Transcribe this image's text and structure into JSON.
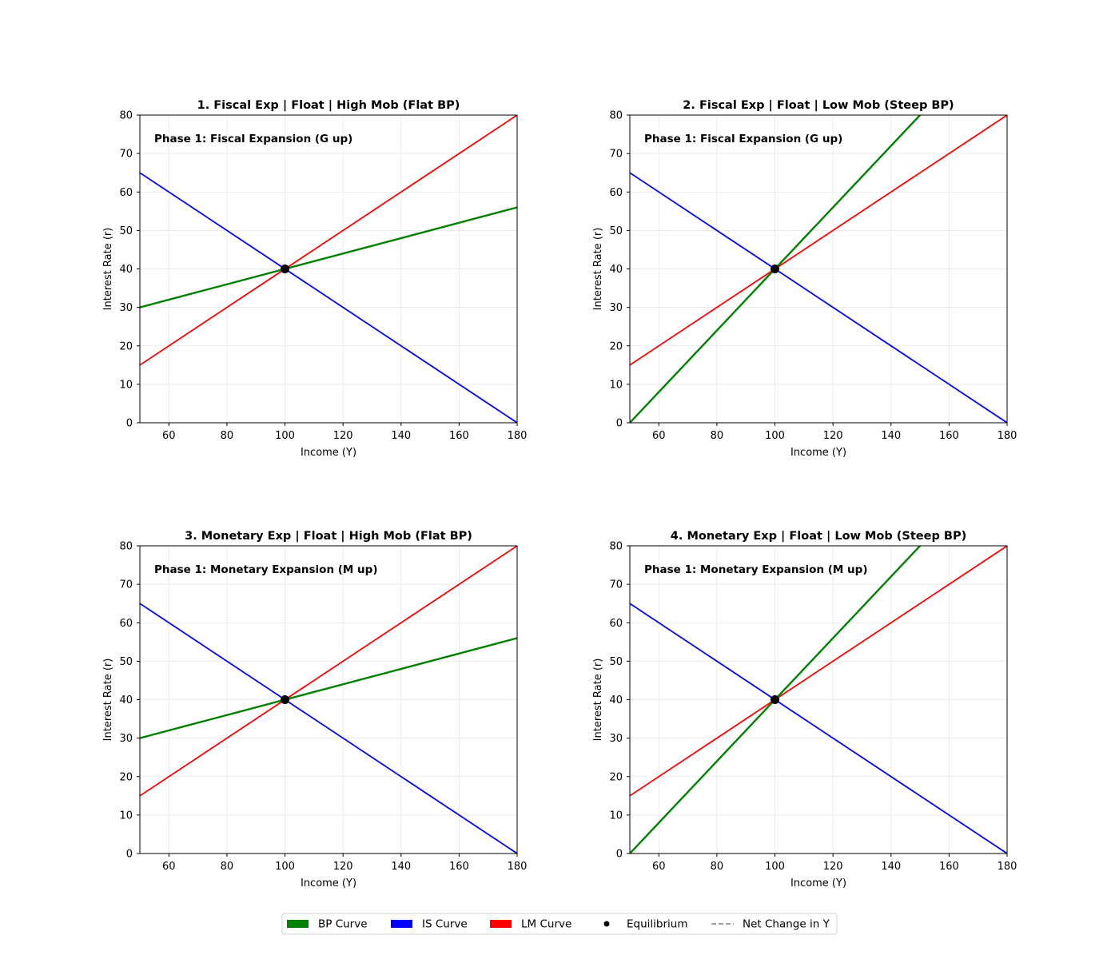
{
  "legend": {
    "items": [
      {
        "label": "BP Curve",
        "kind": "patch",
        "color": "#008000"
      },
      {
        "label": "IS Curve",
        "kind": "patch",
        "color": "#0000ff"
      },
      {
        "label": "LM Curve",
        "kind": "patch",
        "color": "#ff0000"
      },
      {
        "label": "Equilibrium",
        "kind": "dot",
        "color": "#000000"
      },
      {
        "label": "Net Change in Y",
        "kind": "dash",
        "color": "#808080"
      }
    ]
  },
  "chart_data": [
    {
      "type": "line",
      "title": "1. Fiscal Exp | Float | High Mob (Flat BP)",
      "annotation": "Phase 1: Fiscal Expansion (G up)",
      "xlabel": "Income (Y)",
      "ylabel": "Interest Rate (r)",
      "xlim": [
        50,
        180
      ],
      "ylim": [
        0,
        80
      ],
      "xticks": [
        60,
        80,
        100,
        120,
        140,
        160,
        180
      ],
      "yticks": [
        0,
        10,
        20,
        30,
        40,
        50,
        60,
        70,
        80
      ],
      "grid": true,
      "series": [
        {
          "name": "IS Curve",
          "color": "#0000ff",
          "x": [
            50,
            180
          ],
          "y": [
            65,
            0
          ]
        },
        {
          "name": "LM Curve",
          "color": "#ff0000",
          "x": [
            50,
            180
          ],
          "y": [
            15,
            80
          ]
        },
        {
          "name": "BP Curve",
          "color": "#008000",
          "x": [
            50,
            180
          ],
          "y": [
            30,
            56
          ]
        }
      ],
      "equilibrium": {
        "x": 100,
        "y": 40
      }
    },
    {
      "type": "line",
      "title": "2. Fiscal Exp | Float | Low Mob (Steep BP)",
      "annotation": "Phase 1: Fiscal Expansion (G up)",
      "xlabel": "Income (Y)",
      "ylabel": "Interest Rate (r)",
      "xlim": [
        50,
        180
      ],
      "ylim": [
        0,
        80
      ],
      "xticks": [
        60,
        80,
        100,
        120,
        140,
        160,
        180
      ],
      "yticks": [
        0,
        10,
        20,
        30,
        40,
        50,
        60,
        70,
        80
      ],
      "grid": true,
      "series": [
        {
          "name": "IS Curve",
          "color": "#0000ff",
          "x": [
            50,
            180
          ],
          "y": [
            65,
            0
          ]
        },
        {
          "name": "LM Curve",
          "color": "#ff0000",
          "x": [
            50,
            180
          ],
          "y": [
            15,
            80
          ]
        },
        {
          "name": "BP Curve",
          "color": "#008000",
          "x": [
            50,
            180
          ],
          "y": [
            0,
            104
          ]
        }
      ],
      "equilibrium": {
        "x": 100,
        "y": 40
      }
    },
    {
      "type": "line",
      "title": "3. Monetary Exp | Float | High Mob (Flat BP)",
      "annotation": "Phase 1: Monetary Expansion (M up)",
      "xlabel": "Income (Y)",
      "ylabel": "Interest Rate (r)",
      "xlim": [
        50,
        180
      ],
      "ylim": [
        0,
        80
      ],
      "xticks": [
        60,
        80,
        100,
        120,
        140,
        160,
        180
      ],
      "yticks": [
        0,
        10,
        20,
        30,
        40,
        50,
        60,
        70,
        80
      ],
      "grid": true,
      "series": [
        {
          "name": "IS Curve",
          "color": "#0000ff",
          "x": [
            50,
            180
          ],
          "y": [
            65,
            0
          ]
        },
        {
          "name": "LM Curve",
          "color": "#ff0000",
          "x": [
            50,
            180
          ],
          "y": [
            15,
            80
          ]
        },
        {
          "name": "BP Curve",
          "color": "#008000",
          "x": [
            50,
            180
          ],
          "y": [
            30,
            56
          ]
        }
      ],
      "equilibrium": {
        "x": 100,
        "y": 40
      }
    },
    {
      "type": "line",
      "title": "4. Monetary Exp | Float | Low Mob (Steep BP)",
      "annotation": "Phase 1: Monetary Expansion (M up)",
      "xlabel": "Income (Y)",
      "ylabel": "Interest Rate (r)",
      "xlim": [
        50,
        180
      ],
      "ylim": [
        0,
        80
      ],
      "xticks": [
        60,
        80,
        100,
        120,
        140,
        160,
        180
      ],
      "yticks": [
        0,
        10,
        20,
        30,
        40,
        50,
        60,
        70,
        80
      ],
      "grid": true,
      "series": [
        {
          "name": "IS Curve",
          "color": "#0000ff",
          "x": [
            50,
            180
          ],
          "y": [
            65,
            0
          ]
        },
        {
          "name": "LM Curve",
          "color": "#ff0000",
          "x": [
            50,
            180
          ],
          "y": [
            15,
            80
          ]
        },
        {
          "name": "BP Curve",
          "color": "#008000",
          "x": [
            50,
            180
          ],
          "y": [
            0,
            104
          ]
        }
      ],
      "equilibrium": {
        "x": 100,
        "y": 40
      }
    }
  ]
}
